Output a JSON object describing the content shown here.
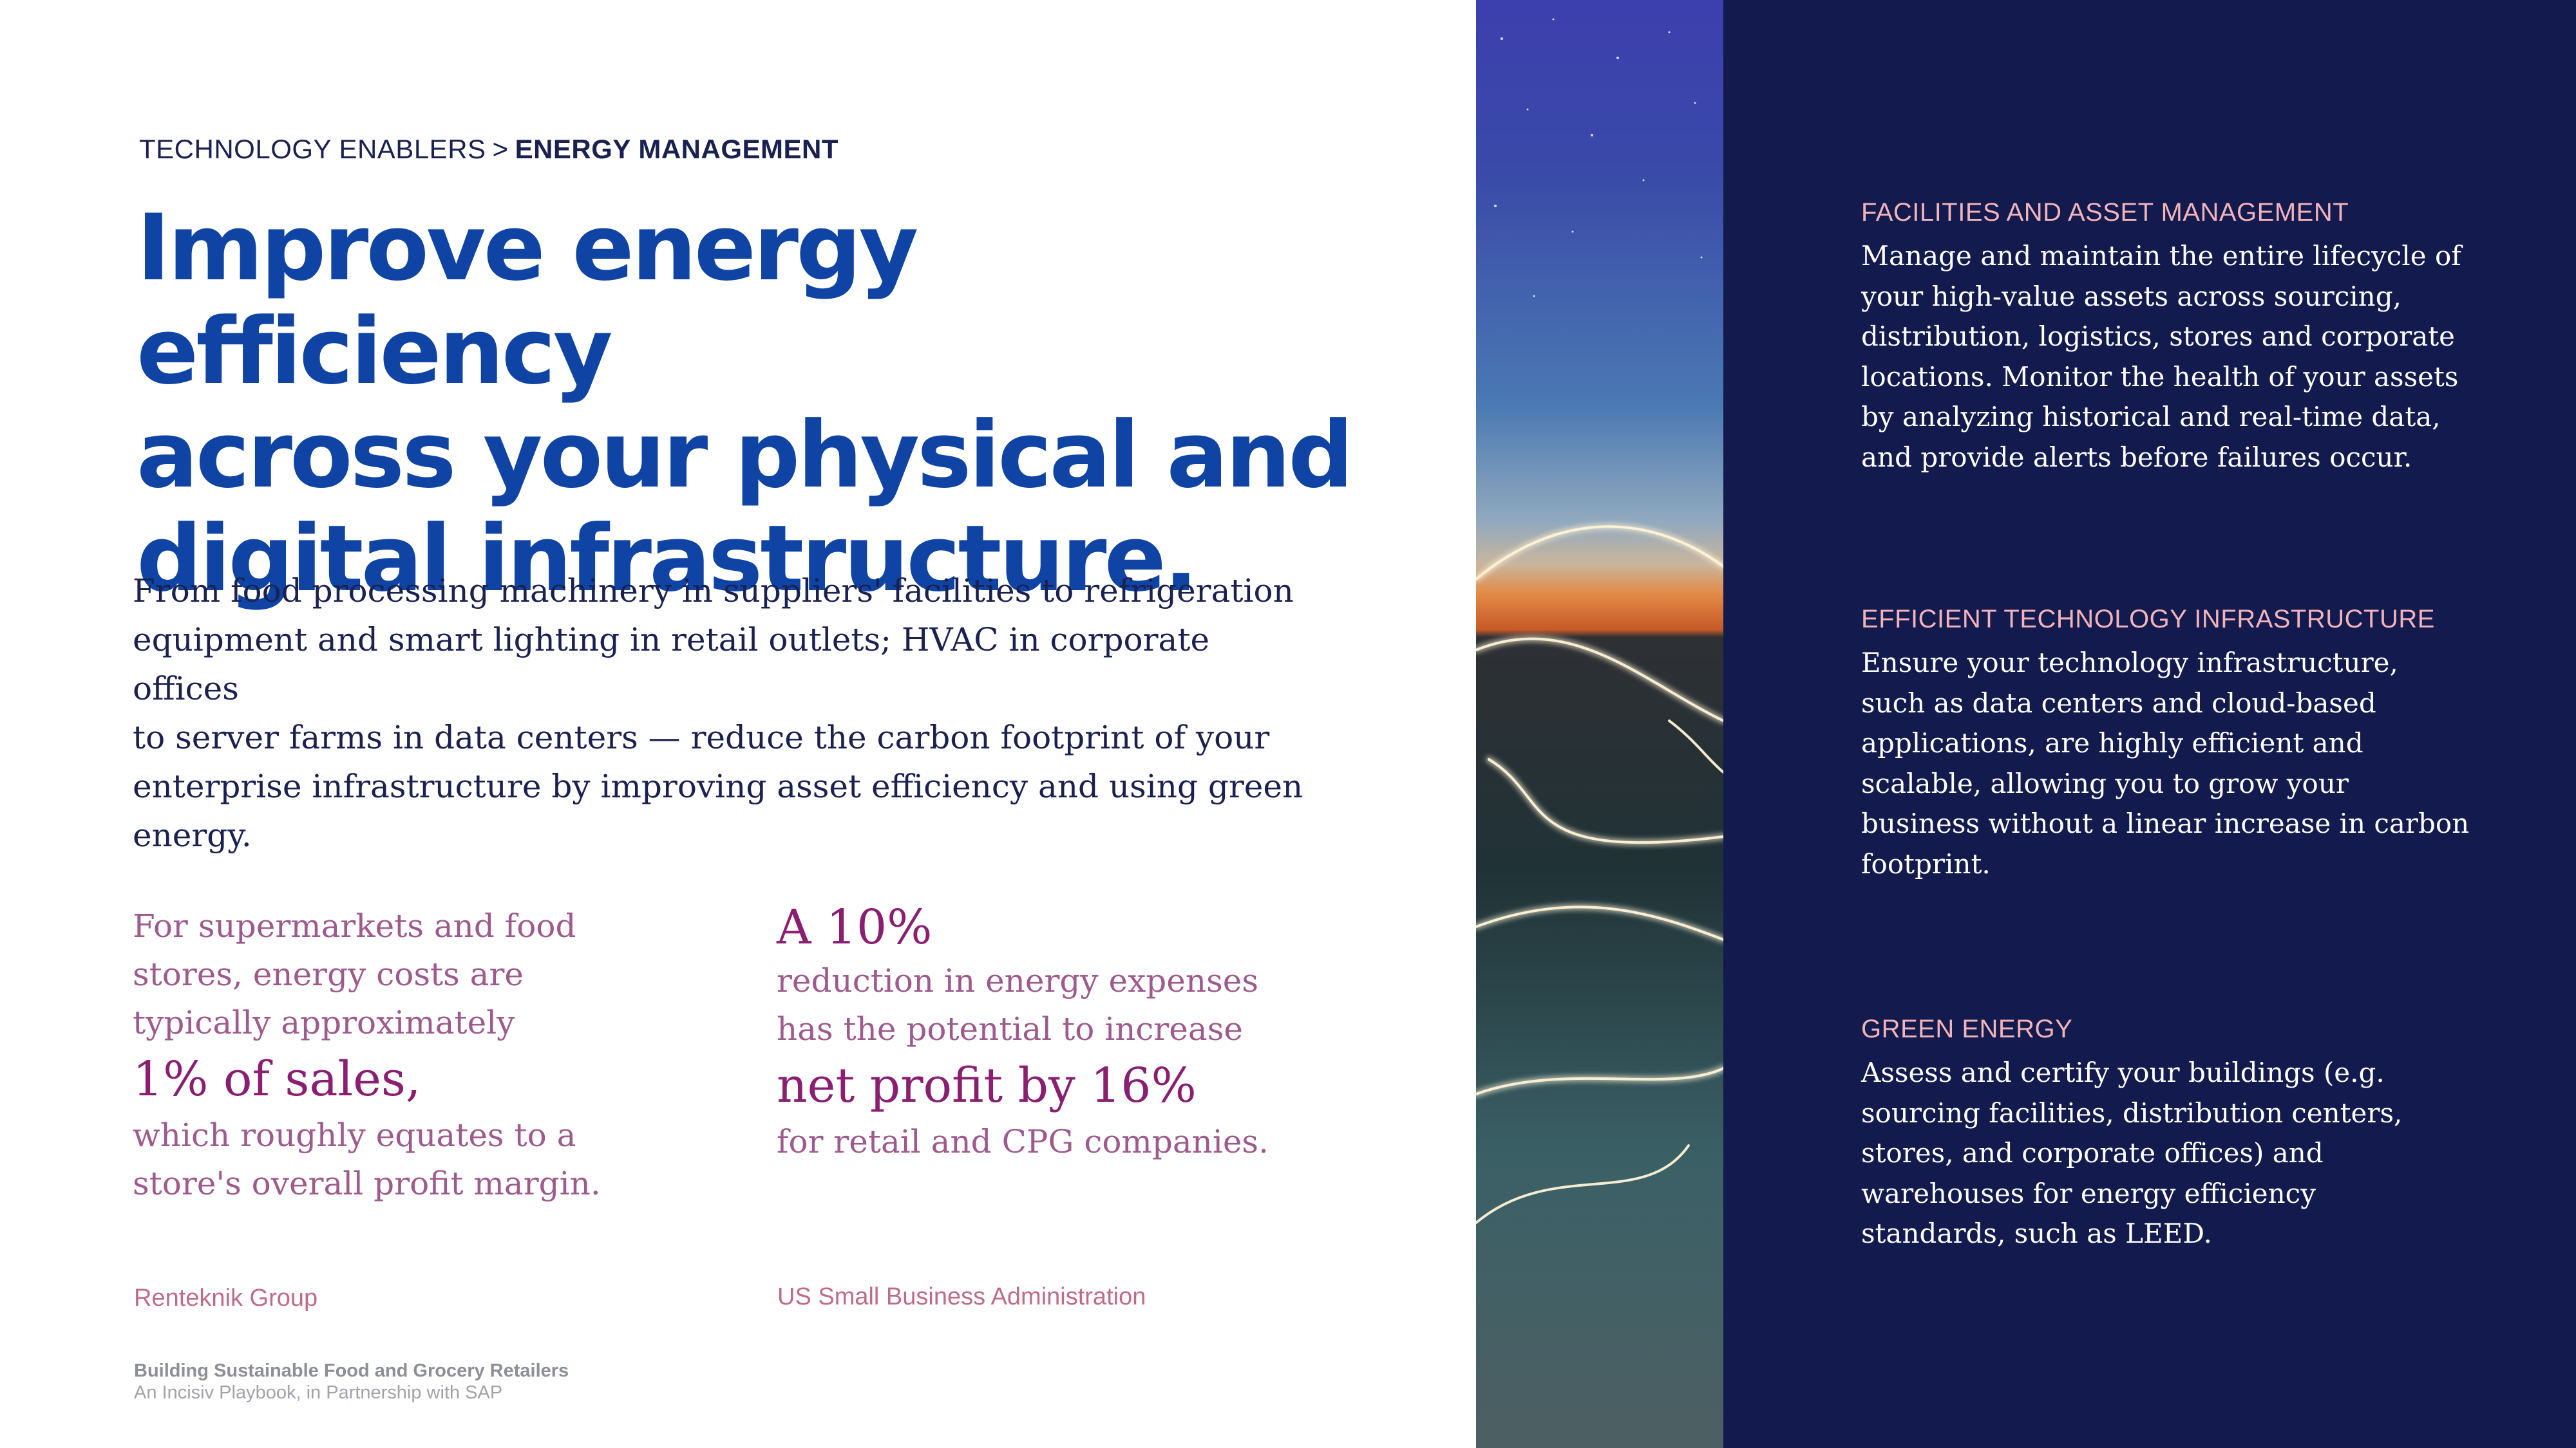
{
  "breadcrumb": {
    "section": "TECHNOLOGY ENABLERS",
    "separator": ">",
    "current": "ENERGY MANAGEMENT"
  },
  "headline": [
    "Improve energy efficiency",
    "across your physical and",
    "digital infrastructure."
  ],
  "intro": [
    "From food processing machinery in suppliers' facilities to refrigeration",
    "equipment and smart lighting in retail outlets; HVAC in corporate offices",
    "to server farms in data centers — reduce the carbon footprint of your",
    "enterprise infrastructure by improving asset efficiency and using green",
    "energy."
  ],
  "stats": [
    {
      "lead": [
        "For supermarkets and food",
        "stores, energy costs are",
        "typically approximately"
      ],
      "highlight": "1% of sales,",
      "tail": [
        "which roughly equates to a",
        "store's overall profit margin."
      ],
      "source": "Renteknik Group"
    },
    {
      "lead": [
        "A 10%"
      ],
      "mid": [
        "reduction in energy expenses",
        "has the potential to increase"
      ],
      "highlight": "net profit by 16%",
      "tail": [
        "for retail and CPG companies."
      ],
      "source": "US Small Business Administration"
    }
  ],
  "footer": {
    "title": "Building Sustainable Food and Grocery Retailers",
    "subtitle": "An Incisiv Playbook, in Partnership with SAP"
  },
  "sections": [
    {
      "heading": "FACILITIES AND ASSET MANAGEMENT",
      "body": [
        "Manage and maintain the entire lifecycle of",
        "your high-value assets across sourcing,",
        "distribution, logistics, stores and corporate",
        "locations. Monitor the health of your assets",
        "by analyzing historical and real-time data,",
        "and provide alerts before failures occur."
      ]
    },
    {
      "heading": "EFFICIENT TECHNOLOGY INFRASTRUCTURE",
      "body": [
        "Ensure your technology infrastructure,",
        "such as data centers and cloud-based",
        "applications, are highly efficient and",
        "scalable, allowing you to grow your",
        "business without a linear increase in carbon",
        "footprint."
      ]
    },
    {
      "heading": "GREEN ENERGY",
      "body": [
        "Assess and certify your buildings (e.g.",
        "sourcing facilities, distribution centers,",
        "stores, and corporate offices) and",
        "warehouses for energy efficiency",
        "standards, such as LEED."
      ]
    }
  ],
  "colors": {
    "headline": "#0f44a4",
    "navy_panel": "#121a4e",
    "stat_text": "#9e5a8d",
    "stat_highlight": "#8a1f72",
    "section_heading": "#f2b3ba"
  },
  "image": {
    "description_icon": "light-trails-photo"
  }
}
